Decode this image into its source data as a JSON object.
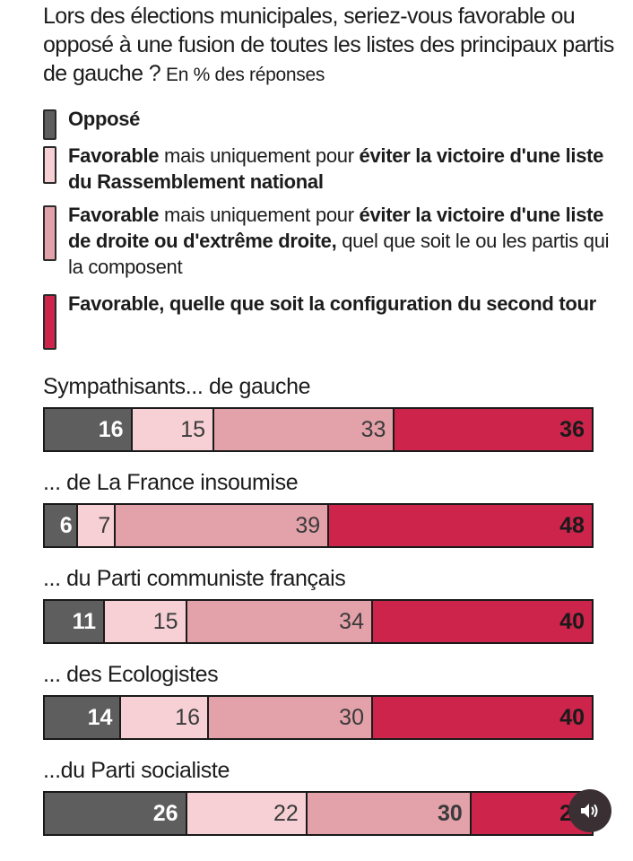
{
  "header": {
    "title": "Lors des élections municipales, seriez-vous favorable ou opposé à une fusion de toutes les listes des principaux partis de gauche ?",
    "unit": "En % des réponses"
  },
  "legend": [
    {
      "color": "#5e5e5e",
      "parts": [
        {
          "text": "Opposé",
          "bold": true
        }
      ]
    },
    {
      "color": "#f6d0d4",
      "parts": [
        {
          "text": "Favorable",
          "bold": true
        },
        {
          "text": " mais uniquement pour ",
          "bold": false
        },
        {
          "text": "éviter la victoire d'une liste du Rassemblement national",
          "bold": true
        }
      ]
    },
    {
      "color": "#e3a1aa",
      "parts": [
        {
          "text": "Favorable",
          "bold": true
        },
        {
          "text": " mais uniquement pour ",
          "bold": false
        },
        {
          "text": "éviter la victoire d'une liste de droite ou d'extrême droite,",
          "bold": true
        },
        {
          "text": " quel que soit le ou les partis qui la composent",
          "bold": false
        }
      ]
    },
    {
      "color": "#cd244c",
      "parts": [
        {
          "text": "Favorable, quelle que soit la configuration du second tour",
          "bold": true
        }
      ]
    }
  ],
  "chart_data": {
    "type": "bar",
    "stacked": true,
    "orientation": "horizontal",
    "title": "Lors des élections municipales, seriez-vous favorable ou opposé à une fusion de toutes les listes des principaux partis de gauche ?",
    "subtitle": "En % des réponses",
    "categories": [
      "Sympathisants... de gauche",
      "... de La France insoumise",
      "... du Parti communiste français",
      "... des Ecologistes",
      "...du Parti socialiste"
    ],
    "series": [
      {
        "name": "Opposé",
        "color": "#5e5e5e",
        "values": [
          16,
          6,
          11,
          14,
          26
        ]
      },
      {
        "name": "Favorable mais uniquement pour éviter la victoire d'une liste du Rassemblement national",
        "color": "#f6d0d4",
        "values": [
          15,
          7,
          15,
          16,
          22
        ]
      },
      {
        "name": "Favorable mais uniquement pour éviter la victoire d'une liste de droite ou d'extrême droite, quel que soit le ou les partis qui la composent",
        "color": "#e3a1aa",
        "values": [
          33,
          39,
          34,
          30,
          30
        ]
      },
      {
        "name": "Favorable, quelle que soit la configuration du second tour",
        "color": "#cd244c",
        "values": [
          36,
          48,
          40,
          40,
          22
        ]
      }
    ],
    "label_colors": [
      "#ffffff",
      "#3a3a3a",
      "#3a3a3a",
      "#1a1a1a"
    ],
    "xlim": [
      0,
      100
    ],
    "grid": false,
    "legend_position": "top"
  },
  "overlay": {
    "sound_icon": "speaker-icon"
  }
}
